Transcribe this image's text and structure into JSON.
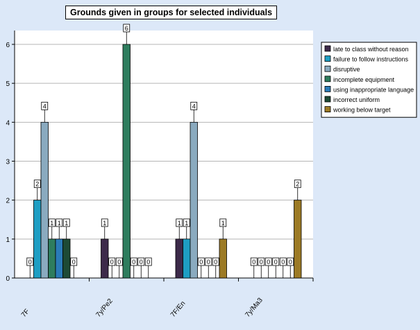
{
  "chart_data": {
    "type": "bar",
    "title": "Grounds given in groups for selected individuals",
    "xlabel": "",
    "ylabel": "",
    "ylim": [
      0,
      6
    ],
    "yticks": [
      0,
      1,
      2,
      3,
      4,
      5,
      6
    ],
    "grid": true,
    "legend_position": "right",
    "categories": [
      "7F",
      "7y/Pe2",
      "7F/En",
      "7y/Ma3"
    ],
    "series": [
      {
        "name": "late to class without reason",
        "color": "#3d2a4a",
        "values": [
          0,
          1,
          1,
          0
        ]
      },
      {
        "name": "failure to follow instructions",
        "color": "#1e9ec3",
        "values": [
          2,
          0,
          1,
          0
        ]
      },
      {
        "name": "disruptive",
        "color": "#8aaabf",
        "values": [
          4,
          0,
          4,
          0
        ]
      },
      {
        "name": "incomplete equipment",
        "color": "#2e7d5e",
        "values": [
          1,
          6,
          0,
          0
        ]
      },
      {
        "name": "using inappropriate language",
        "color": "#2a7bb8",
        "values": [
          1,
          0,
          0,
          0
        ]
      },
      {
        "name": "incorrect uniform",
        "color": "#1d4a35",
        "values": [
          1,
          0,
          0,
          0
        ]
      },
      {
        "name": "working below target",
        "color": "#9c7a25",
        "values": [
          0,
          0,
          1,
          2
        ]
      }
    ]
  }
}
